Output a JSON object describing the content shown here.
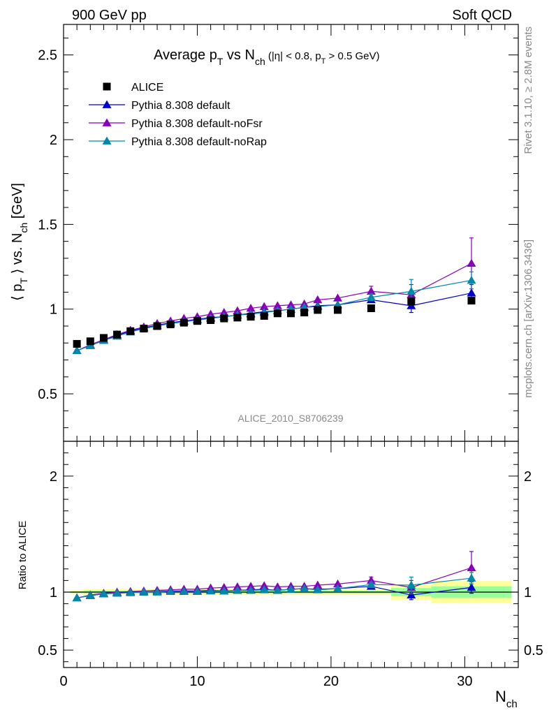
{
  "header": {
    "left": "900 GeV pp",
    "right": "Soft QCD"
  },
  "side_labels": {
    "rivet": "Rivet 3.1.10, ≥ 2.8M events",
    "mcplots": "mcplots.cern.ch [arXiv:1306.3436]"
  },
  "watermark": "ALICE_2010_S8706239",
  "colors": {
    "alice": "#000000",
    "default": "#0000cc",
    "noFsr": "#8800bb",
    "noRap": "#0088aa",
    "band_yellow": "#ffff99",
    "band_green": "#99ff99"
  },
  "chart_data": [
    {
      "type": "scatter",
      "title": "Average p_T vs N_ch (|η| < 0.8, p_T > 0.5 GeV)",
      "title_parts": {
        "main": "Average p",
        "sub1": "T",
        "mid": " vs N",
        "sub2": "ch",
        "cond_a": " (|η| < 0.8, p",
        "cond_sub": "T",
        "cond_b": " > 0.5 GeV)"
      },
      "ylabel": "⟨ p_T ⟩ vs. N_ch [GeV]",
      "ylabel_parts": {
        "a": "⟨ p",
        "sub1": "T",
        "b": " ⟩ vs. N",
        "sub2": "ch",
        "c": " [GeV]"
      },
      "xlim": [
        0,
        34
      ],
      "ylim": [
        0.22,
        2.68
      ],
      "yticks": [
        {
          "v": 0.5,
          "label": "0.5"
        },
        {
          "v": 1,
          "label": "1"
        },
        {
          "v": 1.5,
          "label": "1.5"
        },
        {
          "v": 2,
          "label": "2"
        },
        {
          "v": 2.5,
          "label": "2.5"
        }
      ],
      "legend_position": "top-left",
      "series": [
        {
          "name": "ALICE",
          "style": "data-square",
          "color": "#000000",
          "x": [
            1,
            2,
            3,
            4,
            5,
            6,
            7,
            8,
            9,
            10,
            11,
            12,
            13,
            14,
            15,
            16,
            17,
            18,
            19,
            20.5,
            23,
            26,
            30.5
          ],
          "y": [
            0.795,
            0.81,
            0.83,
            0.85,
            0.87,
            0.885,
            0.9,
            0.91,
            0.92,
            0.93,
            0.935,
            0.945,
            0.95,
            0.955,
            0.96,
            0.975,
            0.975,
            0.98,
            0.995,
            0.995,
            1.005,
            1.045,
            1.05
          ]
        },
        {
          "name": "Pythia 8.308 default",
          "style": "line-triangle",
          "color": "#0000cc",
          "x": [
            1,
            2,
            3,
            4,
            5,
            6,
            7,
            8,
            9,
            10,
            11,
            12,
            13,
            14,
            15,
            16,
            17,
            18,
            19,
            20.5,
            23,
            26,
            30.5
          ],
          "y": [
            0.755,
            0.785,
            0.815,
            0.845,
            0.87,
            0.89,
            0.905,
            0.92,
            0.93,
            0.94,
            0.95,
            0.955,
            0.965,
            0.975,
            0.985,
            0.99,
            1.0,
            1.01,
            1.02,
            1.025,
            1.055,
            1.02,
            1.095
          ],
          "yerr": [
            0,
            0,
            0,
            0,
            0,
            0,
            0,
            0,
            0,
            0,
            0,
            0,
            0,
            0,
            0,
            0,
            0,
            0,
            0,
            0,
            0.015,
            0.04,
            0.05
          ]
        },
        {
          "name": "Pythia 8.308 default-noFsr",
          "style": "line-triangle",
          "color": "#8800bb",
          "x": [
            1,
            2,
            3,
            4,
            5,
            6,
            7,
            8,
            9,
            10,
            11,
            12,
            13,
            14,
            15,
            16,
            17,
            18,
            19,
            20.5,
            23,
            26,
            30.5
          ],
          "y": [
            0.755,
            0.79,
            0.82,
            0.85,
            0.875,
            0.895,
            0.915,
            0.93,
            0.945,
            0.955,
            0.97,
            0.98,
            0.99,
            1.005,
            1.015,
            1.02,
            1.025,
            1.03,
            1.055,
            1.065,
            1.105,
            1.085,
            1.27
          ],
          "yerr": [
            0,
            0,
            0,
            0,
            0,
            0,
            0,
            0,
            0,
            0,
            0,
            0,
            0,
            0,
            0,
            0,
            0,
            0,
            0,
            0,
            0.03,
            0.06,
            0.15
          ]
        },
        {
          "name": "Pythia 8.308 default-noRap",
          "style": "line-triangle",
          "color": "#0088aa",
          "x": [
            1,
            2,
            3,
            4,
            5,
            6,
            7,
            8,
            9,
            10,
            11,
            12,
            13,
            14,
            15,
            16,
            17,
            18,
            19,
            20.5,
            23,
            26,
            30.5
          ],
          "y": [
            0.755,
            0.785,
            0.815,
            0.84,
            0.865,
            0.885,
            0.9,
            0.915,
            0.925,
            0.935,
            0.945,
            0.955,
            0.965,
            0.97,
            0.98,
            0.99,
            1.0,
            1.01,
            1.015,
            1.025,
            1.07,
            1.105,
            1.17
          ],
          "yerr": [
            0,
            0,
            0,
            0,
            0,
            0,
            0,
            0,
            0,
            0,
            0,
            0,
            0,
            0,
            0,
            0,
            0,
            0,
            0,
            0,
            0.02,
            0.07,
            0.05
          ]
        }
      ]
    },
    {
      "type": "scatter",
      "title": "",
      "xlabel": "N_ch",
      "xlabel_parts": {
        "a": "N",
        "sub": "ch"
      },
      "ylabel": "Ratio to ALICE",
      "xlim": [
        0,
        34
      ],
      "ylim": [
        0.35,
        2.3
      ],
      "xticks": [
        {
          "v": 0,
          "label": "0"
        },
        {
          "v": 10,
          "label": "10"
        },
        {
          "v": 20,
          "label": "20"
        },
        {
          "v": 30,
          "label": "30"
        }
      ],
      "yticks": [
        {
          "v": 0.5,
          "label": "0.5"
        },
        {
          "v": 1,
          "label": "1"
        },
        {
          "v": 2,
          "label": "2"
        }
      ],
      "reference_line": 1,
      "uncertainty_bands": [
        {
          "x0": 0.5,
          "x1": 1.5,
          "yellow": [
            0.985,
            1.015
          ],
          "green": [
            0.993,
            1.007
          ]
        },
        {
          "x0": 1.5,
          "x1": 24.5,
          "yellow": [
            0.975,
            1.025
          ],
          "green": [
            0.988,
            1.012
          ]
        },
        {
          "x0": 24.5,
          "x1": 27.5,
          "yellow": [
            0.935,
            1.065
          ],
          "green": [
            0.965,
            1.035
          ]
        },
        {
          "x0": 27.5,
          "x1": 33.5,
          "yellow": [
            0.905,
            1.095
          ],
          "green": [
            0.95,
            1.05
          ]
        }
      ],
      "series": [
        {
          "name": "Pythia 8.308 default",
          "color": "#0000cc",
          "x": [
            1,
            2,
            3,
            4,
            5,
            6,
            7,
            8,
            9,
            10,
            11,
            12,
            13,
            14,
            15,
            16,
            17,
            18,
            19,
            20.5,
            23,
            26,
            30.5
          ],
          "y": [
            0.95,
            0.97,
            0.985,
            0.995,
            1.0,
            1.0,
            1.005,
            1.01,
            1.01,
            1.01,
            1.015,
            1.01,
            1.015,
            1.02,
            1.025,
            1.015,
            1.025,
            1.03,
            1.025,
            1.03,
            1.05,
            0.975,
            1.04
          ],
          "yerr": [
            0,
            0,
            0,
            0,
            0,
            0,
            0,
            0,
            0,
            0,
            0,
            0,
            0,
            0,
            0,
            0,
            0,
            0,
            0,
            0,
            0.015,
            0.04,
            0.05
          ]
        },
        {
          "name": "Pythia 8.308 default-noFsr",
          "color": "#8800bb",
          "x": [
            1,
            2,
            3,
            4,
            5,
            6,
            7,
            8,
            9,
            10,
            11,
            12,
            13,
            14,
            15,
            16,
            17,
            18,
            19,
            20.5,
            23,
            26,
            30.5
          ],
          "y": [
            0.95,
            0.975,
            0.99,
            1.0,
            1.005,
            1.01,
            1.015,
            1.02,
            1.025,
            1.025,
            1.035,
            1.04,
            1.045,
            1.05,
            1.055,
            1.045,
            1.05,
            1.05,
            1.06,
            1.07,
            1.1,
            1.04,
            1.21
          ],
          "yerr": [
            0,
            0,
            0,
            0,
            0,
            0,
            0,
            0,
            0,
            0,
            0,
            0,
            0,
            0,
            0,
            0,
            0,
            0,
            0,
            0,
            0.03,
            0.06,
            0.14
          ]
        },
        {
          "name": "Pythia 8.308 default-noRap",
          "color": "#0088aa",
          "x": [
            1,
            2,
            3,
            4,
            5,
            6,
            7,
            8,
            9,
            10,
            11,
            12,
            13,
            14,
            15,
            16,
            17,
            18,
            19,
            20.5,
            23,
            26,
            30.5
          ],
          "y": [
            0.95,
            0.97,
            0.985,
            0.99,
            0.995,
            1.0,
            1.0,
            1.005,
            1.005,
            1.005,
            1.01,
            1.01,
            1.015,
            1.015,
            1.02,
            1.015,
            1.025,
            1.03,
            1.02,
            1.03,
            1.065,
            1.06,
            1.12
          ],
          "yerr": [
            0,
            0,
            0,
            0,
            0,
            0,
            0,
            0,
            0,
            0,
            0,
            0,
            0,
            0,
            0,
            0,
            0,
            0,
            0,
            0,
            0.02,
            0.07,
            0.05
          ]
        }
      ]
    }
  ]
}
